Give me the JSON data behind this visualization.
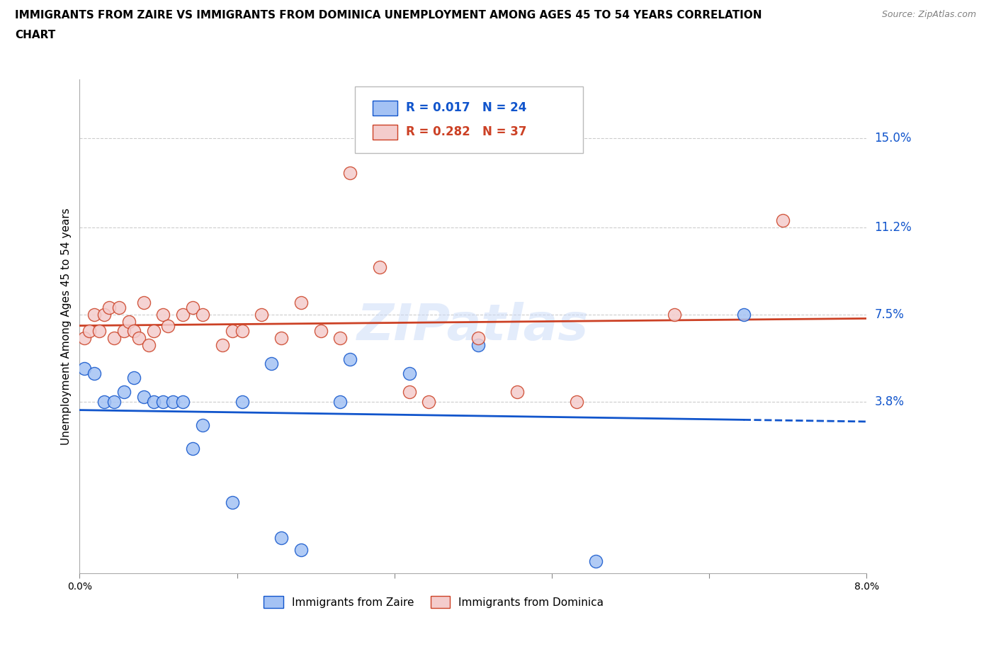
{
  "title_line1": "IMMIGRANTS FROM ZAIRE VS IMMIGRANTS FROM DOMINICA UNEMPLOYMENT AMONG AGES 45 TO 54 YEARS CORRELATION",
  "title_line2": "CHART",
  "source": "Source: ZipAtlas.com",
  "ylabel": "Unemployment Among Ages 45 to 54 years",
  "ytick_vals": [
    3.8,
    7.5,
    11.2,
    15.0
  ],
  "xlim": [
    0.0,
    8.0
  ],
  "ylim": [
    -3.5,
    17.5
  ],
  "legend1_label": "Immigrants from Zaire",
  "legend2_label": "Immigrants from Dominica",
  "R_zaire": "0.017",
  "N_zaire": "24",
  "R_dominica": "0.282",
  "N_dominica": "37",
  "color_zaire_fill": "#a4c2f4",
  "color_zaire_edge": "#1155cc",
  "color_dominica_fill": "#f4cccc",
  "color_dominica_edge": "#cc4125",
  "watermark_color": "#c9daf8",
  "zaire_x": [
    0.05,
    0.15,
    0.25,
    0.35,
    0.45,
    0.55,
    0.65,
    0.75,
    0.85,
    0.95,
    1.05,
    1.15,
    1.25,
    1.55,
    1.65,
    2.05,
    2.25,
    2.65,
    2.75,
    3.35,
    4.05,
    5.25,
    6.75,
    1.95
  ],
  "zaire_y": [
    5.2,
    5.0,
    3.8,
    3.8,
    4.2,
    4.8,
    4.0,
    3.8,
    3.8,
    3.8,
    3.8,
    1.8,
    2.8,
    -0.5,
    3.8,
    -2.0,
    -2.5,
    3.8,
    5.6,
    5.0,
    6.2,
    -3.0,
    7.5,
    5.4
  ],
  "dominica_x": [
    0.05,
    0.1,
    0.15,
    0.2,
    0.25,
    0.3,
    0.35,
    0.4,
    0.45,
    0.5,
    0.55,
    0.6,
    0.65,
    0.7,
    0.75,
    0.85,
    0.9,
    1.05,
    1.15,
    1.25,
    1.45,
    1.55,
    1.65,
    1.85,
    2.05,
    2.25,
    2.45,
    2.65,
    2.75,
    3.05,
    3.35,
    3.55,
    4.05,
    4.45,
    5.05,
    6.05,
    7.15
  ],
  "dominica_y": [
    6.5,
    6.8,
    7.5,
    6.8,
    7.5,
    7.8,
    6.5,
    7.8,
    6.8,
    7.2,
    6.8,
    6.5,
    8.0,
    6.2,
    6.8,
    7.5,
    7.0,
    7.5,
    7.8,
    7.5,
    6.2,
    6.8,
    6.8,
    7.5,
    6.5,
    8.0,
    6.8,
    6.5,
    13.5,
    9.5,
    4.2,
    3.8,
    6.5,
    4.2,
    3.8,
    7.5,
    11.5
  ],
  "xtick_positions": [
    0.0,
    1.6,
    3.2,
    4.8,
    6.4,
    8.0
  ],
  "xtick_labels": [
    "0.0%",
    "",
    "",
    "",
    "",
    "8.0%"
  ]
}
